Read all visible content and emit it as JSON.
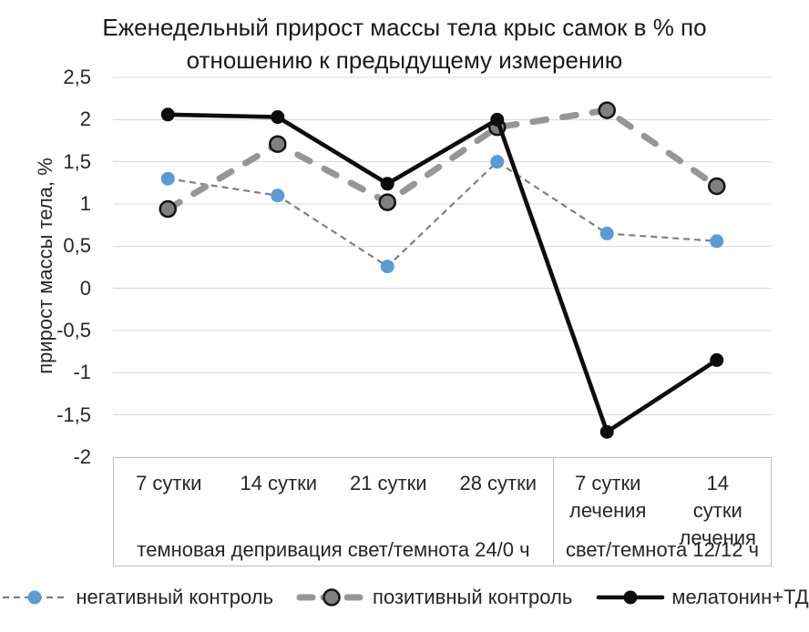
{
  "chart_data": {
    "type": "line",
    "title": "Еженедельный прирост массы тела крыс самок в % по отношению к предыдущему измерению",
    "ylabel": "прирост массы тела, %",
    "ylim": [
      -2,
      2.5
    ],
    "ytick_step": 0.5,
    "ytick_labels": [
      "2,5",
      "2",
      "1,5",
      "1",
      "0,5",
      "0",
      "-0,5",
      "-1",
      "-1,5",
      "-2"
    ],
    "categories": [
      "7 сутки",
      "14 сутки",
      "21 сутки",
      "28 сутки",
      "7 сутки лечения",
      "14 сутки лечения"
    ],
    "category_lines": [
      [
        "7 сутки"
      ],
      [
        "14 сутки"
      ],
      [
        "21 сутки"
      ],
      [
        "28 сутки"
      ],
      [
        "7 сутки",
        "лечения"
      ],
      [
        "14 сутки",
        "лечения"
      ]
    ],
    "group_labels": [
      {
        "label": "темновая депривация свет/темнота 24/0 ч",
        "categories_span": [
          0,
          3
        ]
      },
      {
        "label": "свет/темнота 12/12 ч",
        "categories_span": [
          4,
          5
        ]
      }
    ],
    "grid": true,
    "legend_position": "bottom",
    "series": [
      {
        "name": "негативный контроль",
        "style": "thin-dashed",
        "marker_color": "#5B9BD5",
        "line_color": "#7F7F7F",
        "values": [
          1.3,
          1.1,
          0.26,
          1.5,
          0.65,
          0.56
        ]
      },
      {
        "name": "позитивный контроль",
        "style": "thick-dashed",
        "marker_color": "#808080",
        "marker_outline": "#141414",
        "line_color": "#969696",
        "values": [
          0.94,
          1.71,
          1.02,
          1.91,
          2.11,
          1.21
        ]
      },
      {
        "name": "мелатонин+ТД",
        "style": "solid",
        "marker_color": "#0D0D0D",
        "line_color": "#0D0D0D",
        "values": [
          2.06,
          2.03,
          1.24,
          2.0,
          -1.7,
          -0.85
        ]
      }
    ],
    "colors": {
      "gridline": "#D9D9D9",
      "axis_box_border": "#BFBFBF",
      "text": "#262626",
      "title": "#1A1A1A",
      "background": "#FFFFFF"
    }
  }
}
